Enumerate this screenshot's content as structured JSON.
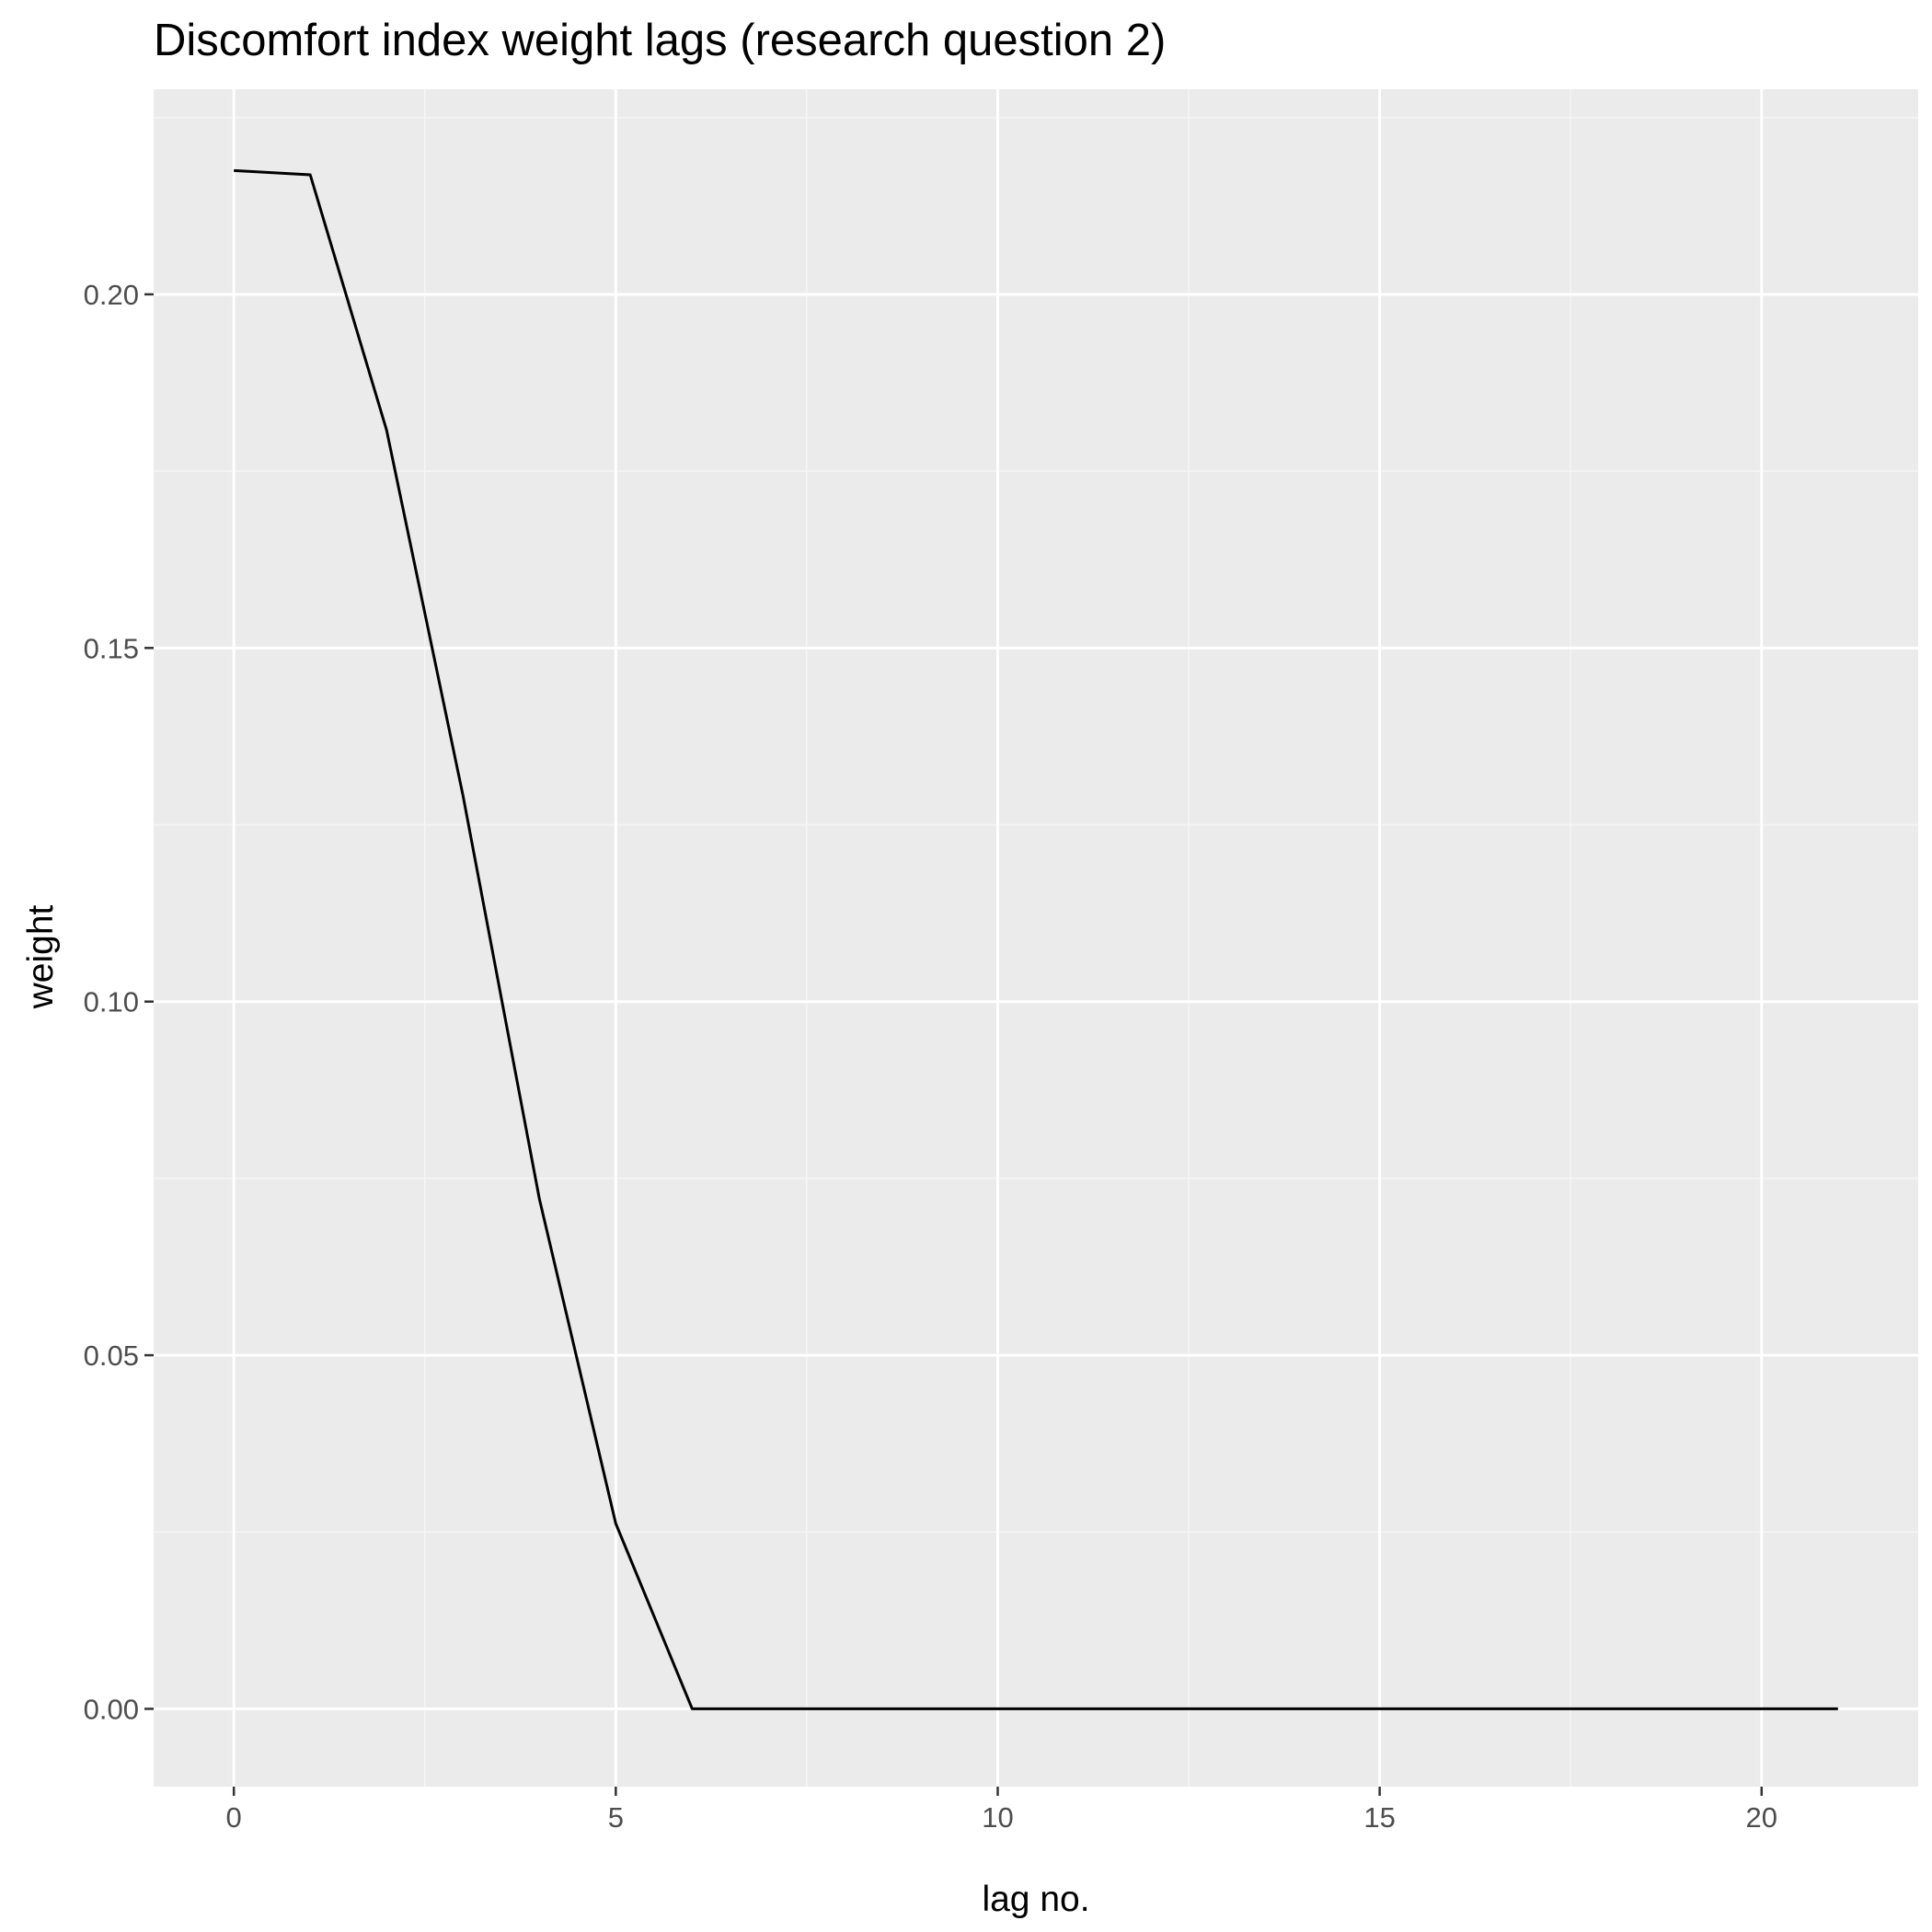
{
  "chart_data": {
    "type": "line",
    "title": "Discomfort index weight lags (research question 2)",
    "xlabel": "lag no.",
    "ylabel": "weight",
    "xlim": [
      -1.05,
      22.05
    ],
    "ylim": [
      -0.011,
      0.229
    ],
    "x_ticks": [
      0,
      5,
      10,
      15,
      20
    ],
    "x_tick_labels": [
      "0",
      "5",
      "10",
      "15",
      "20"
    ],
    "y_ticks": [
      0.0,
      0.05,
      0.1,
      0.15,
      0.2
    ],
    "y_tick_labels": [
      "0.00",
      "0.05",
      "0.10",
      "0.15",
      "0.20"
    ],
    "grid": true,
    "legend": "none",
    "series": [
      {
        "color": "#000000",
        "x": [
          0,
          1,
          2,
          3,
          4,
          5,
          6,
          7,
          8,
          9,
          10,
          11,
          12,
          13,
          14,
          15,
          16,
          17,
          18,
          19,
          20,
          21
        ],
        "y": [
          0.2175,
          0.2169,
          0.1808,
          0.1291,
          0.0721,
          0.0262,
          0.0,
          0.0,
          0.0,
          0.0,
          0.0,
          0.0,
          0.0,
          0.0,
          0.0,
          0.0,
          0.0,
          0.0,
          0.0,
          0.0,
          0.0,
          0.0
        ]
      }
    ],
    "colors": {
      "panel_background": "#ebebeb",
      "grid_major": "#ffffff",
      "grid_minor": "#f5f5f5",
      "tick_text": "#4d4d4d",
      "tick_mark": "#333333"
    }
  }
}
